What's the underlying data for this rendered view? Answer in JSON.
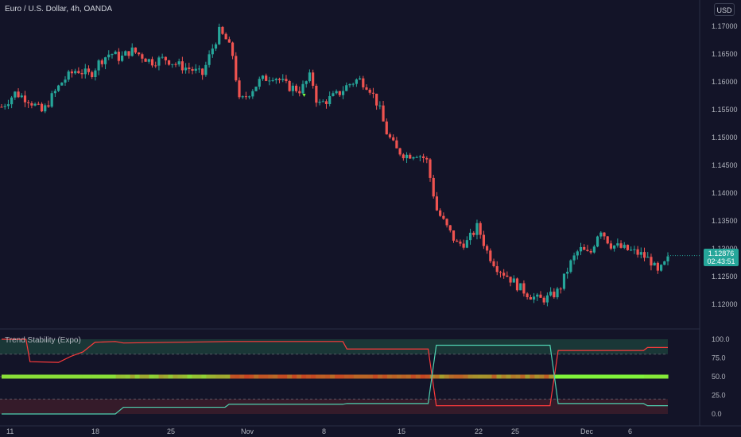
{
  "chart": {
    "title": "Euro / U.S. Dollar, 4h, OANDA",
    "currency": "USD",
    "last_price": "1.12876",
    "countdown": "02:43:51"
  },
  "indicator": {
    "title": "Trend Stability (Expo)"
  },
  "colors": {
    "background": "#131428",
    "up_candle": "#26a69a",
    "down_candle": "#ef5350",
    "upper_line": "#ff3b3b",
    "lower_line": "#4fd1b0",
    "upper_zone": "#1c3b38",
    "lower_zone": "#3a1c2a",
    "mid_line_green": "#7cff3c",
    "mid_line_red": "#d12a1e"
  },
  "chart_data": {
    "type": "candlestick",
    "price_axis": {
      "ticks": [
        "1.17000",
        "1.16500",
        "1.16000",
        "1.15500",
        "1.15000",
        "1.14500",
        "1.14000",
        "1.13500",
        "1.13000",
        "1.12500",
        "1.12000"
      ],
      "range": [
        1.1175,
        1.1728
      ]
    },
    "indicator_axis": {
      "ticks": [
        "100.0",
        "75.0",
        "50.0",
        "25.0",
        "0.0"
      ],
      "range": [
        -5,
        105
      ],
      "levels": [
        80,
        50,
        20
      ]
    },
    "time_axis": {
      "labels": [
        "11",
        "18",
        "25",
        "Nov",
        "8",
        "15",
        "22",
        "25",
        "Dec",
        "6"
      ]
    },
    "close_path": [
      [
        0,
        1.1555
      ],
      [
        8,
        1.158
      ],
      [
        16,
        1.1568
      ],
      [
        24,
        1.1545
      ],
      [
        30,
        1.1575
      ],
      [
        36,
        1.1602
      ],
      [
        44,
        1.1622
      ],
      [
        52,
        1.1612
      ],
      [
        58,
        1.1638
      ],
      [
        64,
        1.1652
      ],
      [
        70,
        1.1642
      ],
      [
        76,
        1.1657
      ],
      [
        82,
        1.1648
      ],
      [
        88,
        1.1636
      ],
      [
        96,
        1.1642
      ],
      [
        104,
        1.163
      ],
      [
        112,
        1.1622
      ],
      [
        118,
        1.1612
      ],
      [
        124,
        1.166
      ],
      [
        128,
        1.169
      ],
      [
        132,
        1.1676
      ],
      [
        136,
        1.1648
      ],
      [
        140,
        1.1562
      ],
      [
        146,
        1.1582
      ],
      [
        152,
        1.1602
      ],
      [
        160,
        1.1612
      ],
      [
        168,
        1.1592
      ],
      [
        176,
        1.1585
      ],
      [
        182,
        1.1612
      ],
      [
        186,
        1.1558
      ],
      [
        192,
        1.1568
      ],
      [
        198,
        1.1578
      ],
      [
        204,
        1.1595
      ],
      [
        210,
        1.1605
      ],
      [
        216,
        1.1592
      ],
      [
        222,
        1.1555
      ],
      [
        226,
        1.1512
      ],
      [
        232,
        1.1478
      ],
      [
        238,
        1.1468
      ],
      [
        244,
        1.1472
      ],
      [
        250,
        1.146
      ],
      [
        256,
        1.137
      ],
      [
        262,
        1.1338
      ],
      [
        268,
        1.1308
      ],
      [
        274,
        1.1312
      ],
      [
        280,
        1.134
      ],
      [
        286,
        1.1292
      ],
      [
        292,
        1.1265
      ],
      [
        298,
        1.125
      ],
      [
        304,
        1.1232
      ],
      [
        310,
        1.1218
      ],
      [
        316,
        1.1208
      ],
      [
        322,
        1.1212
      ],
      [
        328,
        1.1225
      ],
      [
        334,
        1.127
      ],
      [
        340,
        1.13
      ],
      [
        346,
        1.1288
      ],
      [
        352,
        1.1338
      ],
      [
        358,
        1.1308
      ],
      [
        364,
        1.1302
      ],
      [
        370,
        1.1296
      ],
      [
        376,
        1.129
      ],
      [
        382,
        1.1278
      ],
      [
        386,
        1.1255
      ],
      [
        392,
        1.128
      ]
    ],
    "indicator_series": {
      "upper_line": [
        [
          0,
          0
        ],
        [
          12,
          0
        ],
        [
          14,
          0
        ],
        [
          40,
          0
        ],
        [
          56,
          0
        ],
        [
          60,
          9
        ],
        [
          110,
          9
        ],
        [
          112,
          13
        ],
        [
          168,
          13
        ],
        [
          170,
          14
        ],
        [
          210,
          14
        ],
        [
          214,
          92
        ],
        [
          270,
          92
        ],
        [
          274,
          14
        ],
        [
          316,
          14
        ],
        [
          318,
          11
        ],
        [
          328,
          11
        ]
      ],
      "lower_line": [
        [
          0,
          100
        ],
        [
          12,
          100
        ],
        [
          14,
          70
        ],
        [
          28,
          69
        ],
        [
          34,
          77
        ],
        [
          40,
          83
        ],
        [
          46,
          96
        ],
        [
          56,
          97
        ],
        [
          60,
          95
        ],
        [
          112,
          97
        ],
        [
          168,
          97
        ],
        [
          170,
          87
        ],
        [
          210,
          87
        ],
        [
          214,
          11
        ],
        [
          270,
          11
        ],
        [
          274,
          85
        ],
        [
          316,
          85
        ],
        [
          318,
          89
        ],
        [
          328,
          89
        ]
      ]
    }
  }
}
